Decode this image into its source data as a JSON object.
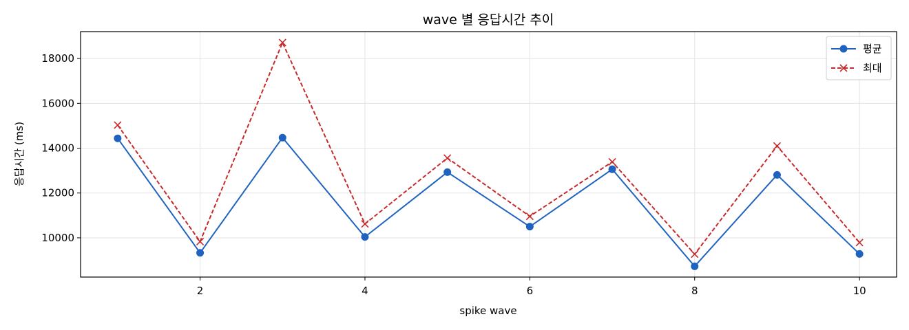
{
  "chart_data": {
    "type": "line",
    "title": "wave 별 응답시간 추이",
    "xlabel": "spike wave",
    "ylabel": "응답시간 (ms)",
    "x": [
      1,
      2,
      3,
      4,
      5,
      6,
      7,
      8,
      9,
      10
    ],
    "xticks": [
      2,
      4,
      6,
      8,
      10
    ],
    "yticks": [
      10000,
      12000,
      14000,
      16000,
      18000
    ],
    "xlim": [
      0.55,
      10.45
    ],
    "ylim": [
      8250,
      19200
    ],
    "grid": true,
    "legend_position": "top-right",
    "series": [
      {
        "name": "평균",
        "style": "solid",
        "marker": "circle",
        "color": "#1f63bf",
        "values": [
          14440,
          9330,
          14470,
          10040,
          12930,
          10500,
          13060,
          8730,
          12810,
          9280
        ]
      },
      {
        "name": "최대",
        "style": "dashed",
        "marker": "x",
        "color": "#c72a2a",
        "values": [
          15030,
          9830,
          18710,
          10620,
          13560,
          10960,
          13390,
          9270,
          14100,
          9790
        ]
      }
    ]
  }
}
